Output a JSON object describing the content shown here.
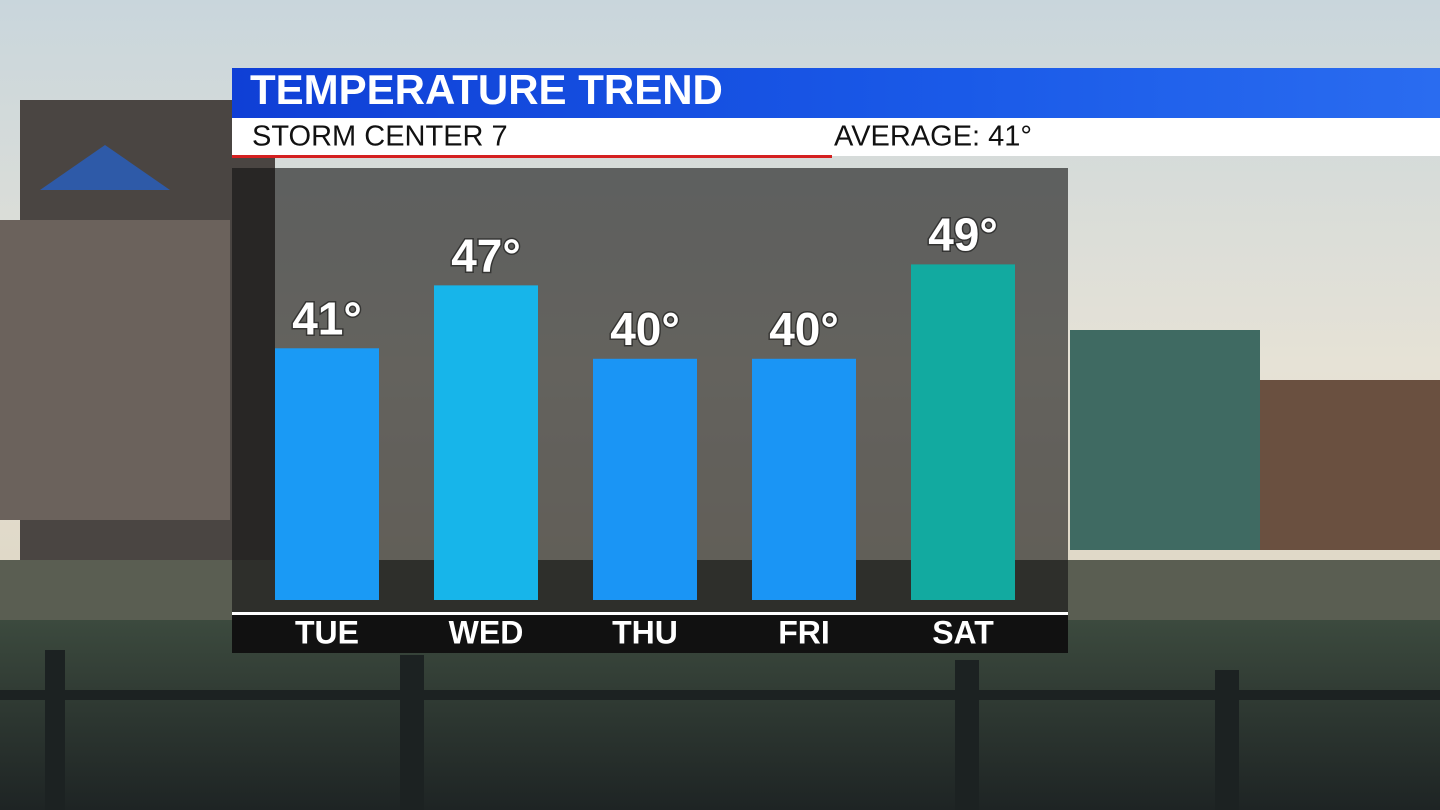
{
  "chart_data": {
    "type": "bar",
    "title": "TEMPERATURE TREND",
    "subtitle": "STORM CENTER 7",
    "annotation": "AVERAGE: 41°",
    "categories": [
      "TUE",
      "WED",
      "THU",
      "FRI",
      "SAT"
    ],
    "values": [
      41,
      47,
      40,
      40,
      49
    ],
    "value_labels": [
      "41°",
      "47°",
      "40°",
      "40°",
      "49°"
    ],
    "colors": [
      "#1a9af5",
      "#17b5ea",
      "#1a95f5",
      "#1a95f5",
      "#12aaa0"
    ],
    "ylim": [
      17,
      58
    ]
  }
}
